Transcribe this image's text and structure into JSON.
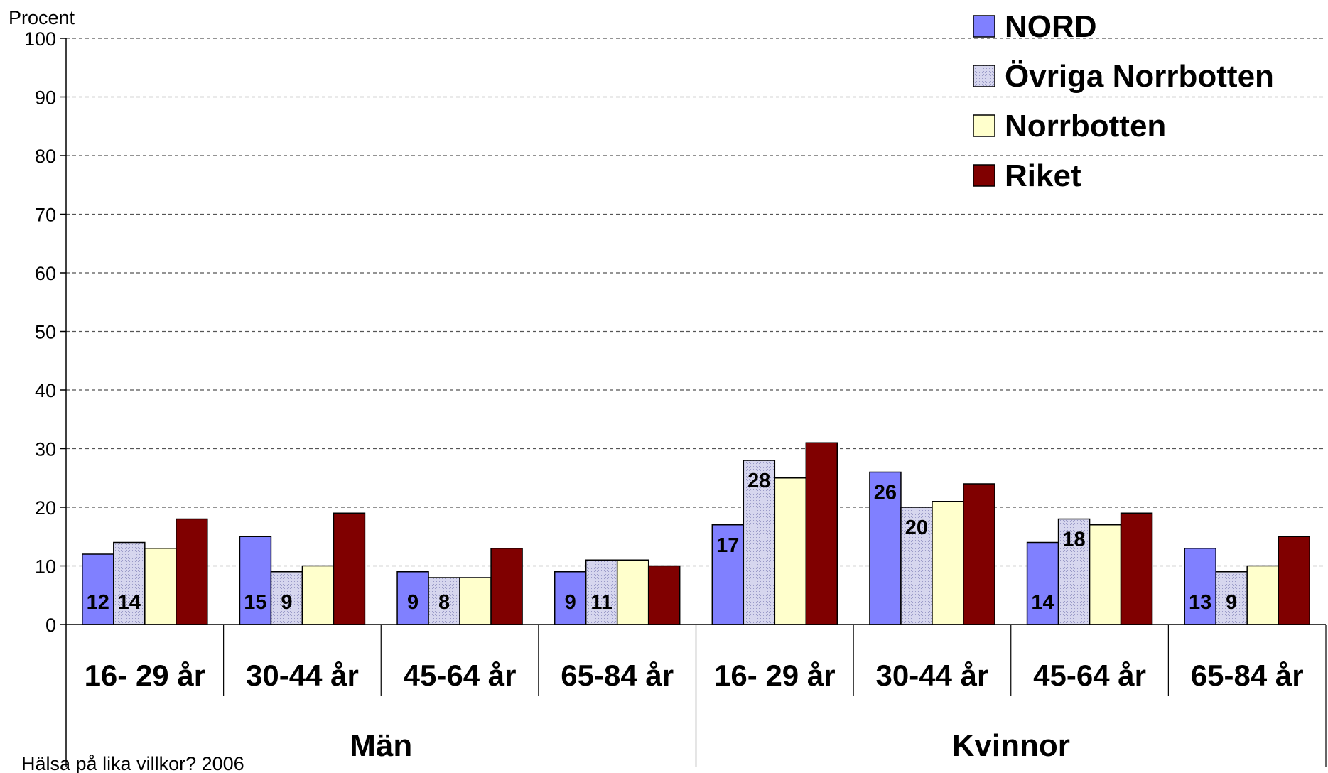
{
  "chart_data": {
    "type": "bar",
    "ylabel": "Procent",
    "ylim": [
      0,
      100
    ],
    "yticks": [
      0,
      10,
      20,
      30,
      40,
      50,
      60,
      70,
      80,
      90,
      100
    ],
    "grid": "horizontal dashed",
    "legend_position": "top-right",
    "categories": [
      "16- 29 år",
      "30-44 år",
      "45-64 år",
      "65-84 år",
      "16- 29 år",
      "30-44 år",
      "45-64 år",
      "65-84 år"
    ],
    "groups": [
      {
        "label": "Män",
        "categories": [
          "16- 29 år",
          "30-44 år",
          "45-64 år",
          "65-84 år"
        ]
      },
      {
        "label": "Kvinnor",
        "categories": [
          "16- 29 år",
          "30-44 år",
          "45-64 år",
          "65-84 år"
        ]
      }
    ],
    "series": [
      {
        "name": "NORD",
        "color": "#8080FF",
        "values": [
          12,
          15,
          9,
          9,
          17,
          26,
          14,
          13
        ],
        "labeled": true
      },
      {
        "name": "Övriga Norrbotten",
        "color": "#C8C8E8",
        "values": [
          14,
          9,
          8,
          11,
          28,
          20,
          18,
          9
        ],
        "labeled": true
      },
      {
        "name": "Norrbotten",
        "color": "#FFFFCC",
        "values": [
          13,
          10,
          8,
          11,
          25,
          21,
          17,
          10
        ],
        "labeled": false
      },
      {
        "name": "Riket",
        "color": "#800000",
        "values": [
          18,
          19,
          13,
          10,
          31,
          24,
          19,
          15
        ],
        "labeled": false
      }
    ],
    "source": "Hälsa på lika villkor? 2006"
  }
}
